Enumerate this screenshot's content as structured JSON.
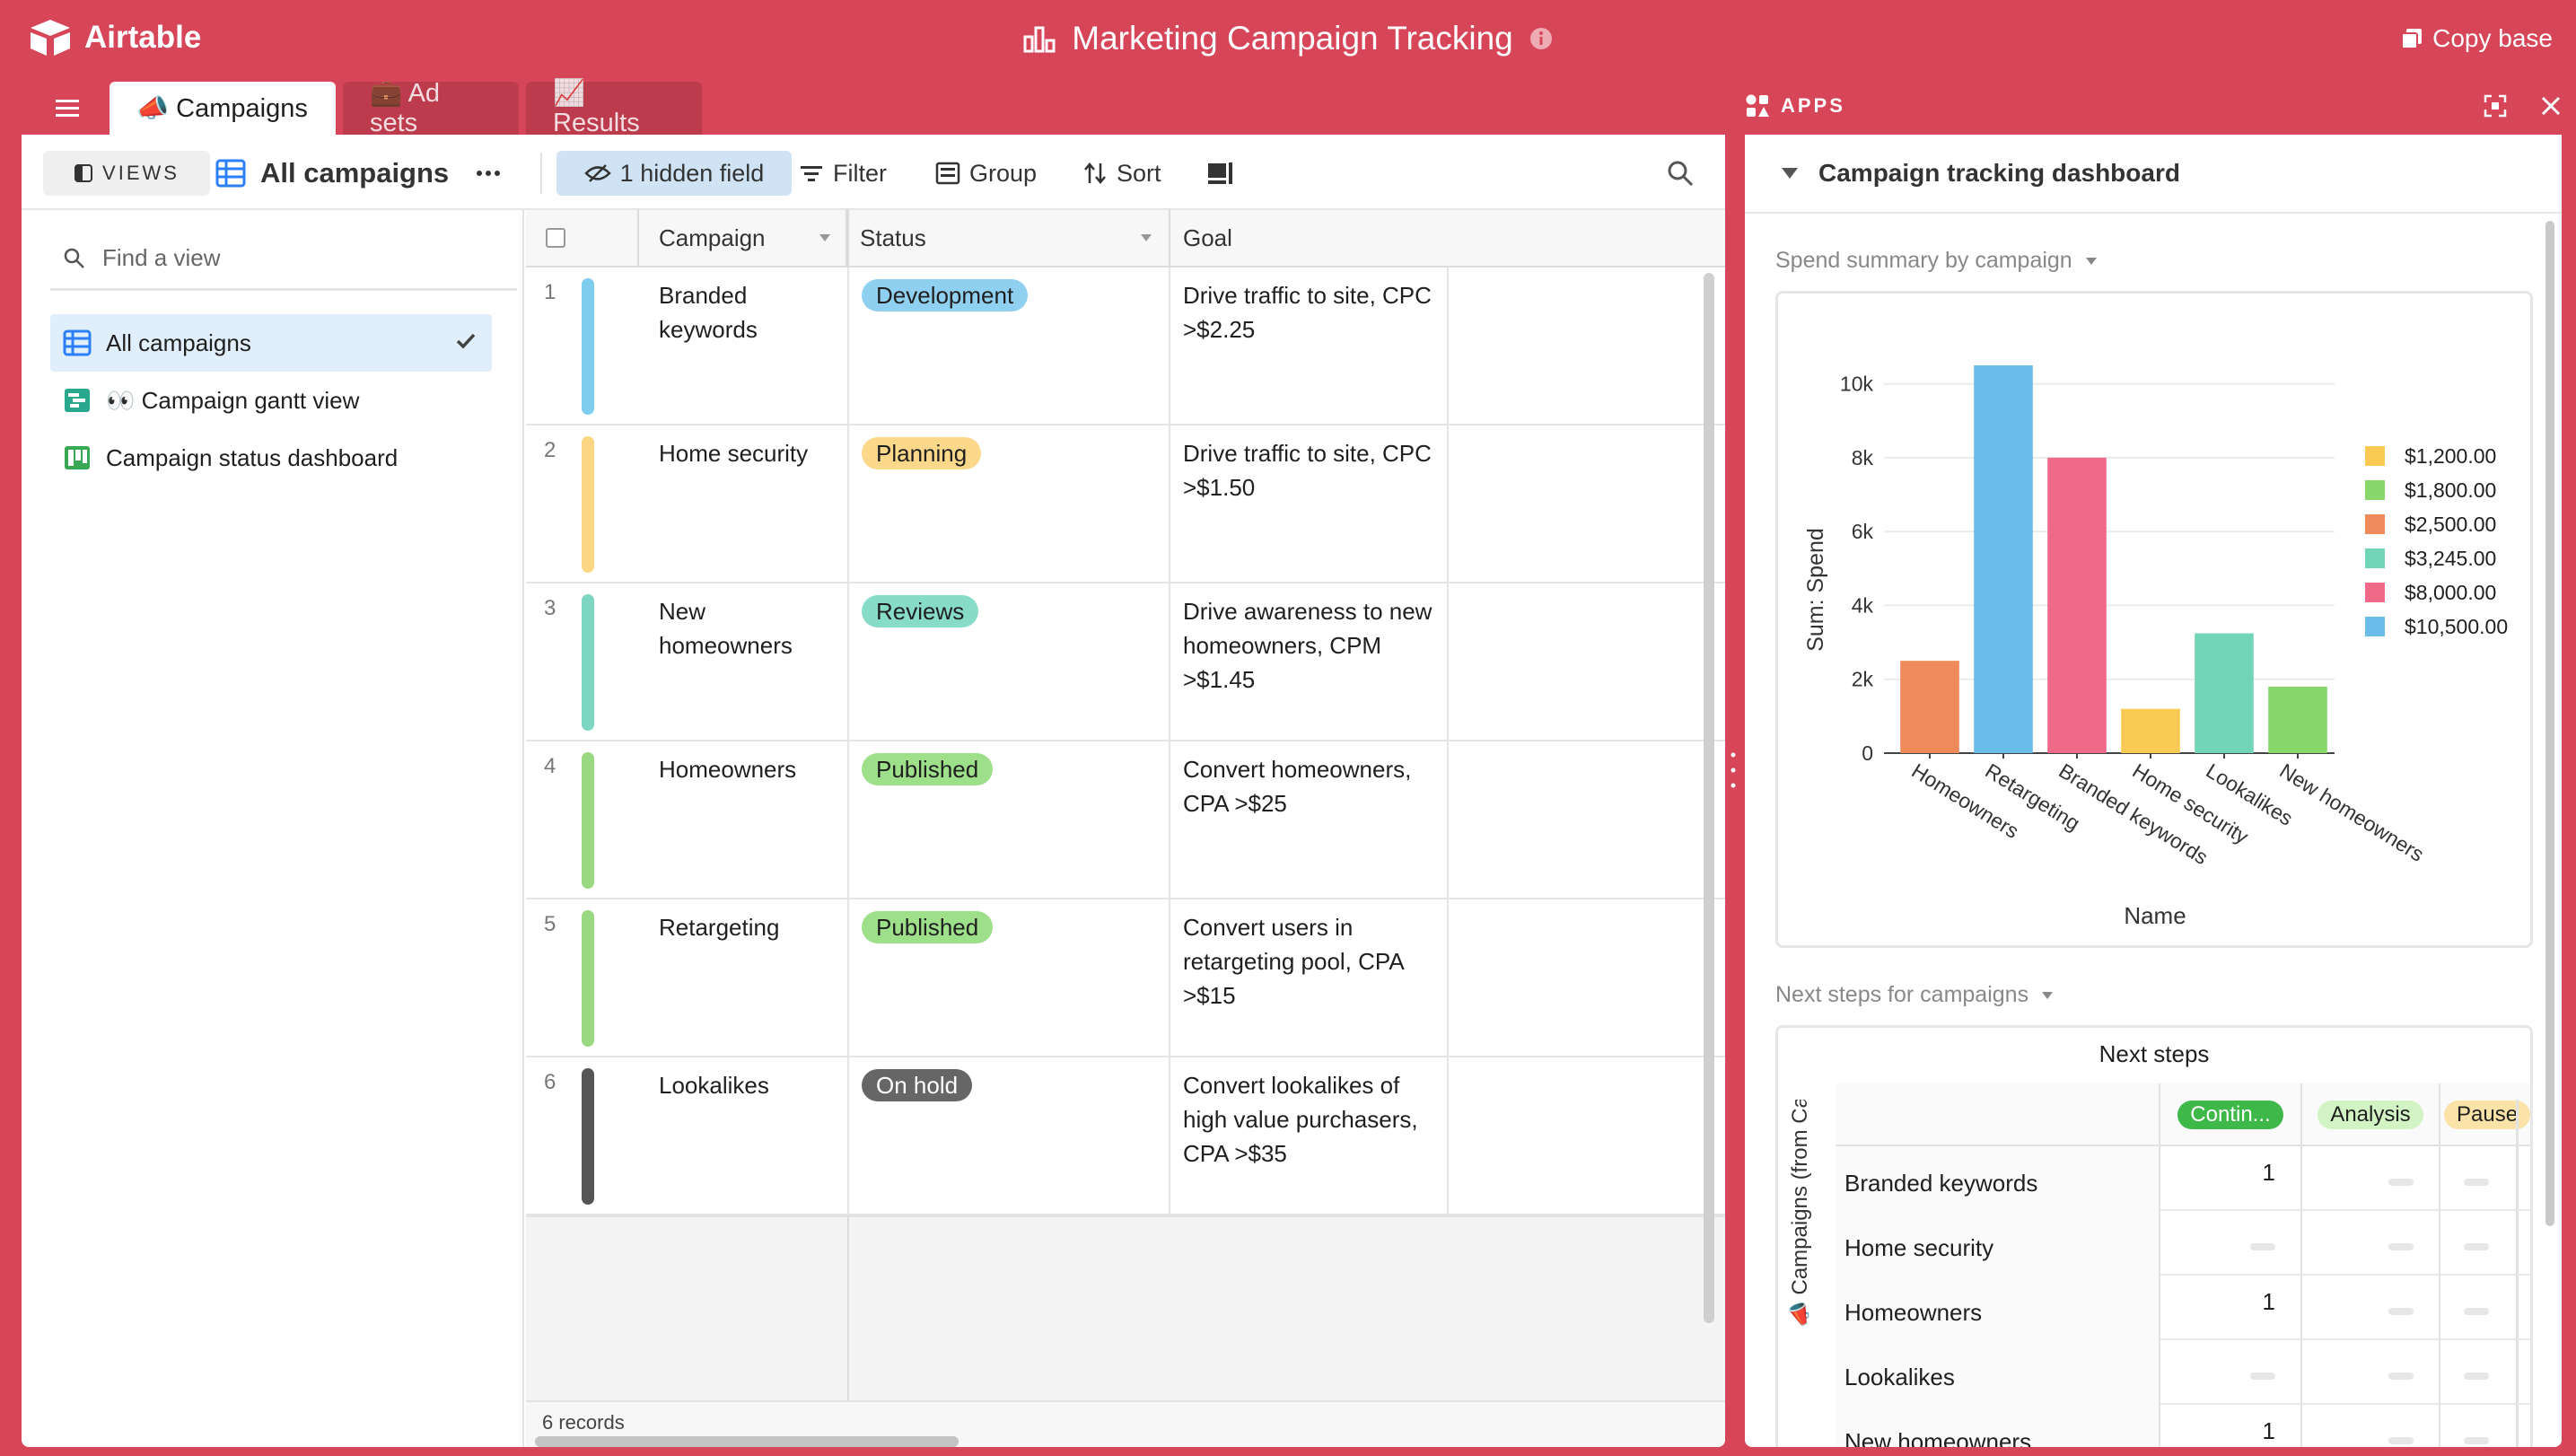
{
  "app": {
    "brand": "Airtable",
    "title": "Marketing Campaign Tracking",
    "copy_base": "Copy base"
  },
  "tabs": [
    {
      "label": "📣 Campaigns",
      "active": true
    },
    {
      "label": "💼 Ad sets",
      "active": false
    },
    {
      "label": "📈 Results",
      "active": false
    }
  ],
  "toolbar": {
    "views_label": "VIEWS",
    "view_name": "All campaigns",
    "hidden_field": "1 hidden field",
    "filter": "Filter",
    "group": "Group",
    "sort": "Sort"
  },
  "sidebar": {
    "find_placeholder": "Find a view",
    "items": [
      {
        "label": "All campaigns",
        "icon": "grid-view-icon",
        "selected": true
      },
      {
        "label": "👀 Campaign gantt view",
        "icon": "gantt-view-icon",
        "selected": false
      },
      {
        "label": "Campaign status dashboard",
        "icon": "kanban-view-icon",
        "selected": false
      }
    ]
  },
  "grid": {
    "columns": [
      "Campaign",
      "Status",
      "Goal"
    ],
    "rows": [
      {
        "num": "1",
        "color": "#7ecdef",
        "campaign": "Branded keywords",
        "status": "Development",
        "status_color": "#8fd0f0",
        "goal": "Drive traffic to site, CPC >$2.25"
      },
      {
        "num": "2",
        "color": "#fbd683",
        "campaign": "Home security",
        "status": "Planning",
        "status_color": "#fcd98a",
        "goal": "Drive traffic to site, CPC >$1.50"
      },
      {
        "num": "3",
        "color": "#7dd6c2",
        "campaign": "New homeowners",
        "status": "Reviews",
        "status_color": "#87dcc8",
        "goal": "Drive awareness to new homeowners, CPM >$1.45"
      },
      {
        "num": "4",
        "color": "#9ad982",
        "campaign": "Homeowners",
        "status": "Published",
        "status_color": "#9ee08a",
        "goal": "Convert homeowners, CPA >$25"
      },
      {
        "num": "5",
        "color": "#9ad982",
        "campaign": "Retargeting",
        "status": "Published",
        "status_color": "#9ee08a",
        "goal": "Convert users in retargeting pool, CPA >$15"
      },
      {
        "num": "6",
        "color": "#555555",
        "campaign": "Lookalikes",
        "status": "On hold",
        "status_color": "#666666",
        "goal": "Convert lookalikes of high value purchasers, CPA >$35"
      }
    ],
    "footer": "6 records"
  },
  "apps": {
    "header": "APPS",
    "dashboard_title": "Campaign tracking dashboard",
    "chart_section": "Spend summary by campaign",
    "table_section": "Next steps for campaigns"
  },
  "chart_data": {
    "type": "bar",
    "categories": [
      "Homeowners",
      "Retargeting",
      "Branded keywords",
      "Home security",
      "Lookalikes",
      "New homeowners"
    ],
    "values": [
      2500,
      10500,
      8000,
      1200,
      3245,
      1800
    ],
    "colors": [
      "#ef8b5a",
      "#68bde8",
      "#ef6a88",
      "#fbca52",
      "#72d5b8",
      "#86d86a"
    ],
    "xlabel": "Name",
    "ylabel": "Sum: Spend",
    "ylim": [
      0,
      10000
    ],
    "yticks": [
      "0",
      "2k",
      "4k",
      "6k",
      "8k",
      "10k"
    ],
    "legend_position": "right",
    "legend": [
      {
        "label": "$1,200.00",
        "color": "#fbca52"
      },
      {
        "label": "$1,800.00",
        "color": "#86d86a"
      },
      {
        "label": "$2,500.00",
        "color": "#ef8b5a"
      },
      {
        "label": "$3,245.00",
        "color": "#72d5b8"
      },
      {
        "label": "$8,000.00",
        "color": "#ef6a88"
      },
      {
        "label": "$10,500.00",
        "color": "#68bde8"
      }
    ],
    "grid": true
  },
  "pivot": {
    "title": "Next steps",
    "row_axis_label": "📣 Campaigns (from Campaigns tabl...",
    "columns": [
      {
        "label": "Contin...",
        "color": "#3fb84a",
        "text_color": "#ffffff"
      },
      {
        "label": "Analysis",
        "color": "#d2f4c5",
        "text_color": "#1f1f1f"
      },
      {
        "label": "Pause",
        "color": "#fbe2a8",
        "text_color": "#1f1f1f"
      }
    ],
    "rows": [
      {
        "label": "Branded keywords",
        "values": [
          "1",
          "",
          ""
        ]
      },
      {
        "label": "Home security",
        "values": [
          "",
          "",
          ""
        ]
      },
      {
        "label": "Homeowners",
        "values": [
          "1",
          "",
          ""
        ]
      },
      {
        "label": "Lookalikes",
        "values": [
          "",
          "",
          ""
        ]
      },
      {
        "label": "New homeowners",
        "values": [
          "1",
          "",
          ""
        ]
      }
    ]
  }
}
